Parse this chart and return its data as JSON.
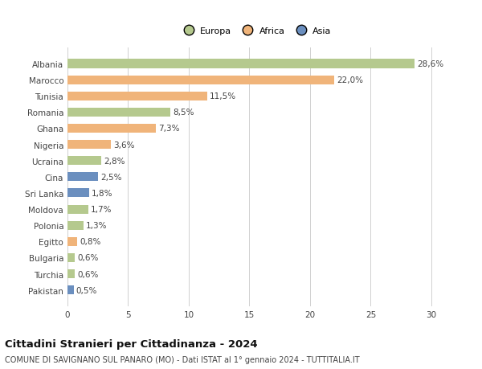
{
  "categories": [
    "Albania",
    "Marocco",
    "Tunisia",
    "Romania",
    "Ghana",
    "Nigeria",
    "Ucraina",
    "Cina",
    "Sri Lanka",
    "Moldova",
    "Polonia",
    "Egitto",
    "Bulgaria",
    "Turchia",
    "Pakistan"
  ],
  "values": [
    28.6,
    22.0,
    11.5,
    8.5,
    7.3,
    3.6,
    2.8,
    2.5,
    1.8,
    1.7,
    1.3,
    0.8,
    0.6,
    0.6,
    0.5
  ],
  "labels": [
    "28,6%",
    "22,0%",
    "11,5%",
    "8,5%",
    "7,3%",
    "3,6%",
    "2,8%",
    "2,5%",
    "1,8%",
    "1,7%",
    "1,3%",
    "0,8%",
    "0,6%",
    "0,6%",
    "0,5%"
  ],
  "colors": [
    "#b5c98e",
    "#f0b47a",
    "#f0b47a",
    "#b5c98e",
    "#f0b47a",
    "#f0b47a",
    "#b5c98e",
    "#6b8fbf",
    "#6b8fbf",
    "#b5c98e",
    "#b5c98e",
    "#f0b47a",
    "#b5c98e",
    "#b5c98e",
    "#6b8fbf"
  ],
  "legend_labels": [
    "Europa",
    "Africa",
    "Asia"
  ],
  "legend_colors": [
    "#b5c98e",
    "#f0b47a",
    "#6b8fbf"
  ],
  "xlim": [
    0,
    31
  ],
  "xticks": [
    0,
    5,
    10,
    15,
    20,
    25,
    30
  ],
  "title": "Cittadini Stranieri per Cittadinanza - 2024",
  "subtitle": "COMUNE DI SAVIGNANO SUL PANARO (MO) - Dati ISTAT al 1° gennaio 2024 - TUTTITALIA.IT",
  "bg_color": "#ffffff",
  "grid_color": "#d0d0d0",
  "bar_height": 0.55,
  "label_fontsize": 7.5,
  "tick_fontsize": 7.5,
  "title_fontsize": 9.5,
  "subtitle_fontsize": 7.0
}
